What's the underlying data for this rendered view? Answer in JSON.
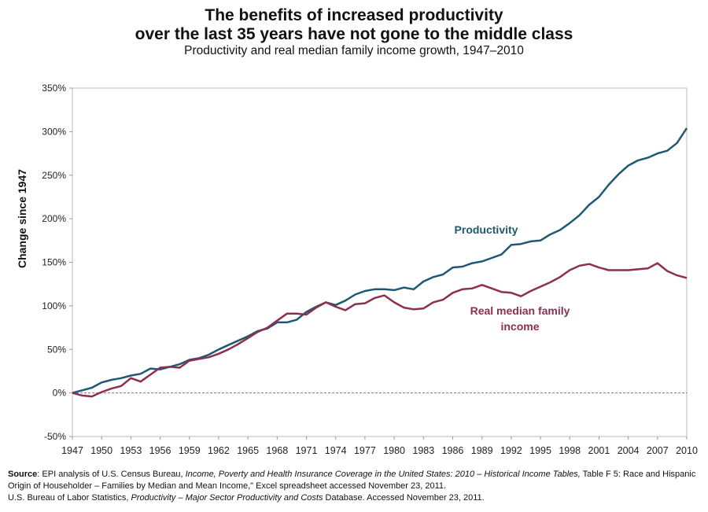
{
  "title_line1": "The benefits of increased productivity",
  "title_line2": "over the last 35 years have not gone to the middle class",
  "subtitle": "Productivity and real median family income growth, 1947–2010",
  "footnote": {
    "line1": [
      {
        "text": "Source",
        "style": "bold"
      },
      {
        "text": ": EPI analysis of U.S. Census Bureau, ",
        "style": "normal"
      },
      {
        "text": "Income, Poverty and Health Insurance Coverage in the United States: 2010 – Historical Income Tables,",
        "style": "italic"
      },
      {
        "text": " Table F 5: Race and Hispanic Origin of Householder – Families by Median and Mean Income,\" Excel spreadsheet accessed November 23, 2011.",
        "style": "normal"
      }
    ],
    "line2": [
      {
        "text": "U.S. Bureau of Labor Statistics, ",
        "style": "normal"
      },
      {
        "text": "Productivity – Major Sector Productivity and Costs",
        "style": "italic"
      },
      {
        "text": " Database.  Accessed November 23, 2011.",
        "style": "normal"
      }
    ]
  },
  "chart_data": {
    "type": "line",
    "title": "The benefits of increased productivity over the last 35 years have not gone to the middle class",
    "subtitle": "Productivity and real median family income growth, 1947–2010",
    "xlabel": "",
    "ylabel": "Change since 1947",
    "xlim": [
      1947,
      2010
    ],
    "ylim": [
      -50,
      350
    ],
    "x_ticks": [
      "1947",
      "1950",
      "1953",
      "1956",
      "1959",
      "1962",
      "1965",
      "1968",
      "1971",
      "1974",
      "1977",
      "1980",
      "1983",
      "1986",
      "1989",
      "1992",
      "1995",
      "1998",
      "2001",
      "2004",
      "2007",
      "2010"
    ],
    "y_ticks": [
      "-50%",
      "0%",
      "50%",
      "100%",
      "150%",
      "200%",
      "250%",
      "300%",
      "350%"
    ],
    "y_tick_values": [
      -50,
      0,
      50,
      100,
      150,
      200,
      250,
      300,
      350
    ],
    "grid": false,
    "zero_line": "dashed",
    "x": [
      1947,
      1948,
      1949,
      1950,
      1951,
      1952,
      1953,
      1954,
      1955,
      1956,
      1957,
      1958,
      1959,
      1960,
      1961,
      1962,
      1963,
      1964,
      1965,
      1966,
      1967,
      1968,
      1969,
      1970,
      1971,
      1972,
      1973,
      1974,
      1975,
      1976,
      1977,
      1978,
      1979,
      1980,
      1981,
      1982,
      1983,
      1984,
      1985,
      1986,
      1987,
      1988,
      1989,
      1990,
      1991,
      1992,
      1993,
      1994,
      1995,
      1996,
      1997,
      1998,
      1999,
      2000,
      2001,
      2002,
      2003,
      2004,
      2005,
      2006,
      2007,
      2008,
      2009,
      2010
    ],
    "series": [
      {
        "name": "Productivity",
        "color": "#1f5875",
        "values": [
          0,
          3,
          6,
          12,
          15,
          17,
          20,
          22,
          28,
          27,
          30,
          33,
          38,
          40,
          44,
          50,
          55,
          60,
          65,
          71,
          74,
          81,
          81,
          84,
          93,
          99,
          104,
          101,
          106,
          113,
          117,
          119,
          119,
          118,
          121,
          119,
          128,
          133,
          136,
          144,
          145,
          149,
          151,
          155,
          159,
          170,
          171,
          174,
          175,
          182,
          187,
          195,
          204,
          216,
          225,
          239,
          251,
          261,
          267,
          270,
          275,
          278,
          287,
          304
        ]
      },
      {
        "name": "Real median family income",
        "color": "#8c2f50",
        "values": [
          0,
          -3,
          -4,
          1,
          5,
          8,
          17,
          13,
          21,
          29,
          30,
          29,
          37,
          39,
          41,
          45,
          50,
          56,
          63,
          70,
          75,
          83,
          91,
          91,
          90,
          98,
          104,
          99,
          95,
          102,
          103,
          109,
          112,
          104,
          98,
          96,
          97,
          104,
          107,
          115,
          119,
          120,
          124,
          120,
          116,
          115,
          111,
          117,
          122,
          127,
          133,
          141,
          146,
          148,
          144,
          141,
          141,
          141,
          142,
          143,
          149,
          140,
          135,
          132
        ]
      }
    ],
    "annotations": [
      {
        "text": "Productivity",
        "series": "Productivity"
      },
      {
        "text_line1": "Real median family",
        "text_line2": "income",
        "series": "Real median family income"
      }
    ]
  }
}
